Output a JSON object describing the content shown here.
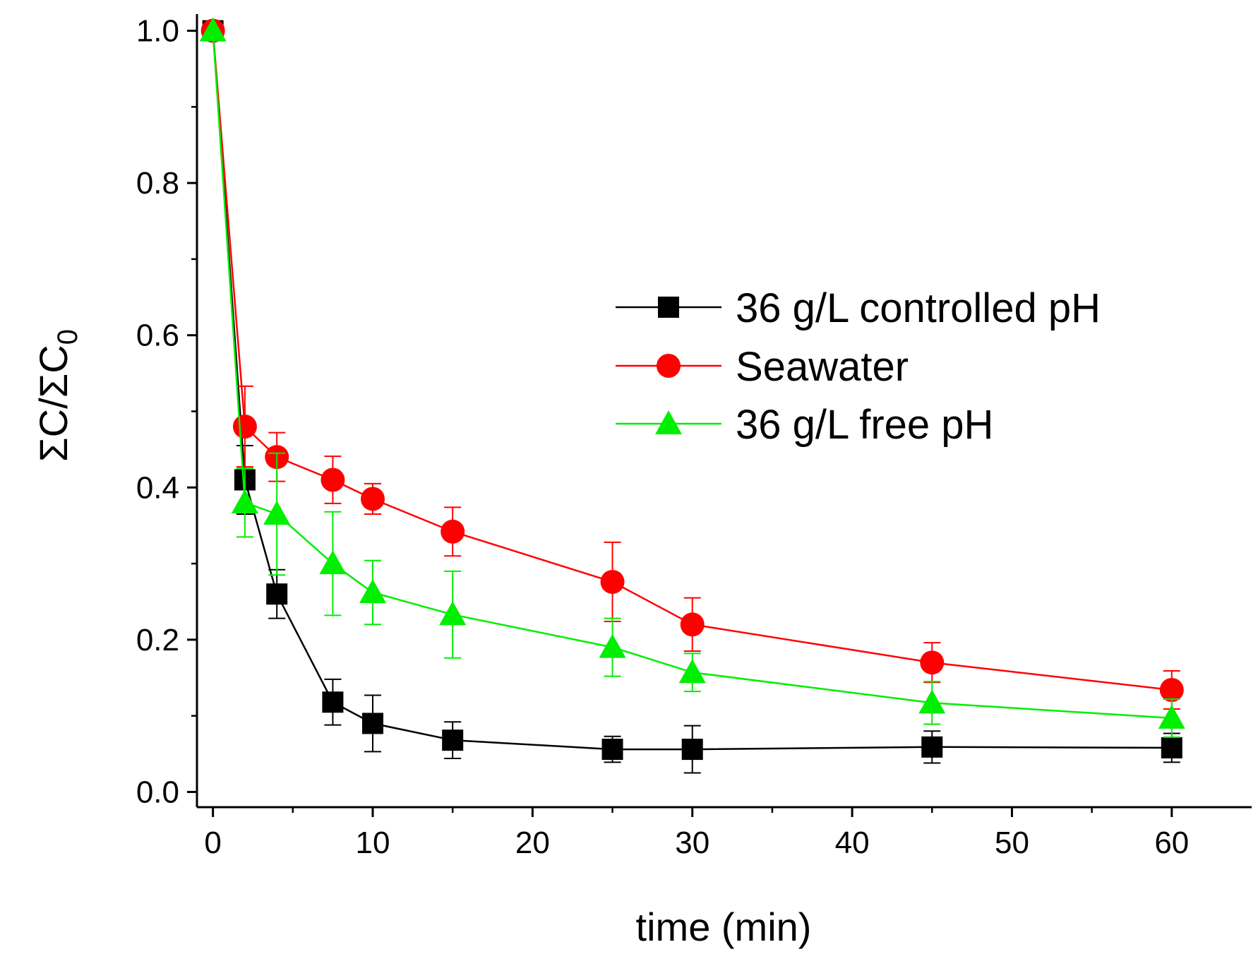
{
  "chart_data": {
    "type": "line",
    "xlabel": "time (min)",
    "ylabel": "ΣC/ΣC",
    "ylabel_subscript": "0",
    "xlim": [
      -1,
      65
    ],
    "ylim": [
      -0.02,
      1.02
    ],
    "xticks": [
      0,
      10,
      20,
      30,
      40,
      50,
      60
    ],
    "xtick_labels": [
      "0",
      "10",
      "20",
      "30",
      "40",
      "50",
      "60"
    ],
    "yticks": [
      0.0,
      0.2,
      0.4,
      0.6,
      0.8,
      1.0
    ],
    "ytick_labels": [
      "0.0",
      "0.2",
      "0.4",
      "0.6",
      "0.8",
      "1.0"
    ],
    "legend_position": "center-right",
    "x": [
      0,
      2,
      4,
      7.5,
      10,
      15,
      25,
      30,
      45,
      60
    ],
    "series": [
      {
        "name": "36 g/L controlled pH",
        "color": "#000000",
        "marker": "square",
        "values": [
          1.0,
          0.41,
          0.26,
          0.118,
          0.09,
          0.068,
          0.056,
          0.056,
          0.059,
          0.058
        ],
        "errors": [
          0.0,
          0.045,
          0.032,
          0.03,
          0.037,
          0.024,
          0.017,
          0.031,
          0.021,
          0.019
        ]
      },
      {
        "name": "Seawater",
        "color": "#ff0000",
        "marker": "circle",
        "values": [
          1.0,
          0.48,
          0.44,
          0.41,
          0.385,
          0.342,
          0.276,
          0.22,
          0.17,
          0.134
        ],
        "errors": [
          0.0,
          0.053,
          0.032,
          0.031,
          0.02,
          0.032,
          0.052,
          0.035,
          0.026,
          0.025
        ]
      },
      {
        "name": "36 g/L free pH",
        "color": "#00ee00",
        "marker": "triangle",
        "values": [
          1.0,
          0.38,
          0.365,
          0.3,
          0.262,
          0.233,
          0.19,
          0.157,
          0.117,
          0.097
        ],
        "errors": [
          0.0,
          0.045,
          0.08,
          0.068,
          0.042,
          0.057,
          0.038,
          0.025,
          0.028,
          0.025
        ]
      }
    ]
  }
}
